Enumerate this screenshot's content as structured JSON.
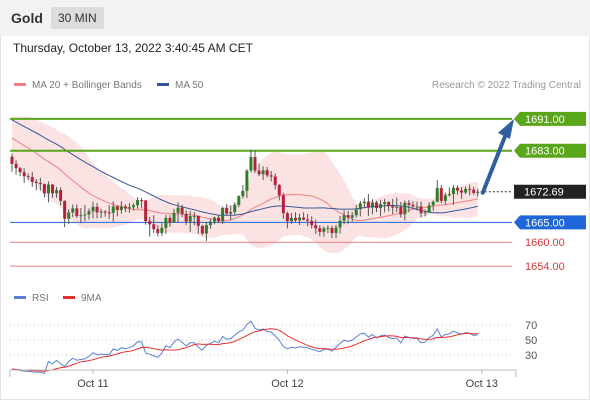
{
  "header": {
    "symbol": "Gold",
    "timeframe": "30 MIN"
  },
  "timestamp": "Thursday, October 13, 2022 3:40:45 AM CET",
  "legend": {
    "ma_bb": {
      "label": "MA 20 + Bollinger Bands",
      "color": "#f08080"
    },
    "ma50": {
      "label": "MA 50",
      "color": "#34589b"
    },
    "rsi": {
      "label": "RSI",
      "color": "#5b7fd6"
    },
    "rsi_ma": {
      "label": "9MA",
      "color": "#e53030"
    }
  },
  "credit": "Research © 2022 Trading Central",
  "chart_data": {
    "type": "candlestick",
    "x_ticks": [
      {
        "label": "Oct 11",
        "idx": 20
      },
      {
        "label": "Oct 12",
        "idx": 68
      },
      {
        "label": "Oct 13",
        "idx": 116
      }
    ],
    "ylim": [
      1648,
      1697
    ],
    "candles": [
      [
        1681.5,
        1682.3,
        1677.7,
        1679.7
      ],
      [
        1679.7,
        1680.6,
        1677.0,
        1678.6
      ],
      [
        1678.6,
        1678.9,
        1676.6,
        1677.6
      ],
      [
        1677.6,
        1678.6,
        1674.9,
        1676.6
      ],
      [
        1676.6,
        1677.3,
        1675.6,
        1676.4
      ],
      [
        1676.4,
        1677.7,
        1673.9,
        1675.2
      ],
      [
        1675.2,
        1675.9,
        1673.1,
        1674.9
      ],
      [
        1674.9,
        1676.2,
        1673.0,
        1674.6
      ],
      [
        1674.6,
        1674.8,
        1671.2,
        1672.3
      ],
      [
        1672.3,
        1675.3,
        1670.0,
        1674.5
      ],
      [
        1674.5,
        1674.6,
        1671.2,
        1672.3
      ],
      [
        1672.3,
        1673.9,
        1671.1,
        1673.1
      ],
      [
        1673.1,
        1673.8,
        1669.3,
        1670.4
      ],
      [
        1670.4,
        1670.5,
        1663.8,
        1665.9
      ],
      [
        1665.9,
        1668.3,
        1664.6,
        1667.5
      ],
      [
        1667.5,
        1669.5,
        1666.3,
        1668.5
      ],
      [
        1668.5,
        1669.5,
        1666.1,
        1666.6
      ],
      [
        1666.6,
        1668.6,
        1664.8,
        1666.8
      ],
      [
        1666.8,
        1669.4,
        1665.3,
        1667.0
      ],
      [
        1667.0,
        1668.5,
        1665.7,
        1667.8
      ],
      [
        1667.8,
        1670.2,
        1666.0,
        1668.9
      ],
      [
        1668.9,
        1669.9,
        1666.0,
        1667.5
      ],
      [
        1667.5,
        1668.4,
        1666.1,
        1667.7
      ],
      [
        1667.7,
        1668.1,
        1666.4,
        1667.5
      ],
      [
        1667.5,
        1669.3,
        1665.9,
        1667.4
      ],
      [
        1667.4,
        1670.3,
        1665.2,
        1669.0
      ],
      [
        1669.0,
        1669.3,
        1666.5,
        1668.1
      ],
      [
        1668.1,
        1670.3,
        1667.2,
        1669.0
      ],
      [
        1669.0,
        1669.5,
        1667.6,
        1668.5
      ],
      [
        1668.5,
        1669.8,
        1667.4,
        1668.8
      ],
      [
        1668.8,
        1669.7,
        1668.0,
        1669.3
      ],
      [
        1669.3,
        1671.3,
        1668.4,
        1670.6
      ],
      [
        1670.6,
        1671.1,
        1668.5,
        1670.5
      ],
      [
        1670.5,
        1670.6,
        1664.4,
        1665.3
      ],
      [
        1665.3,
        1666.4,
        1661.4,
        1664.5
      ],
      [
        1664.5,
        1666.8,
        1662.3,
        1663.3
      ],
      [
        1663.3,
        1664.3,
        1661.5,
        1662.3
      ],
      [
        1662.3,
        1664.8,
        1661.6,
        1663.6
      ],
      [
        1663.6,
        1666.9,
        1662.1,
        1666.1
      ],
      [
        1666.1,
        1666.8,
        1663.9,
        1665.0
      ],
      [
        1665.0,
        1668.4,
        1664.9,
        1667.4
      ],
      [
        1667.4,
        1670.0,
        1664.8,
        1668.7
      ],
      [
        1668.7,
        1669.4,
        1666.3,
        1667.1
      ],
      [
        1667.1,
        1668.0,
        1664.3,
        1665.2
      ],
      [
        1665.2,
        1667.9,
        1662.6,
        1666.6
      ],
      [
        1666.6,
        1667.6,
        1664.3,
        1666.6
      ],
      [
        1666.6,
        1666.6,
        1662.2,
        1664.1
      ],
      [
        1664.1,
        1664.4,
        1661.7,
        1662.2
      ],
      [
        1662.2,
        1665.1,
        1660.3,
        1664.3
      ],
      [
        1664.3,
        1665.9,
        1663.4,
        1665.2
      ],
      [
        1665.2,
        1666.4,
        1664.5,
        1666.2
      ],
      [
        1666.2,
        1666.8,
        1664.8,
        1665.3
      ],
      [
        1665.3,
        1668.9,
        1664.6,
        1668.6
      ],
      [
        1668.6,
        1669.6,
        1666.8,
        1667.2
      ],
      [
        1667.2,
        1669.2,
        1665.5,
        1667.6
      ],
      [
        1667.6,
        1670.0,
        1666.8,
        1669.4
      ],
      [
        1669.4,
        1671.8,
        1668.8,
        1671.6
      ],
      [
        1671.6,
        1674.4,
        1671.0,
        1672.9
      ],
      [
        1672.9,
        1678.3,
        1671.1,
        1678.0
      ],
      [
        1678.0,
        1683.3,
        1677.5,
        1681.4
      ],
      [
        1681.4,
        1683.0,
        1677.4,
        1678.0
      ],
      [
        1678.0,
        1679.8,
        1676.6,
        1677.1
      ],
      [
        1677.1,
        1679.1,
        1675.6,
        1678.1
      ],
      [
        1678.1,
        1678.9,
        1676.3,
        1676.8
      ],
      [
        1676.8,
        1677.9,
        1675.3,
        1676.5
      ],
      [
        1676.5,
        1677.3,
        1673.3,
        1674.4
      ],
      [
        1674.4,
        1674.6,
        1670.5,
        1671.8
      ],
      [
        1671.8,
        1672.5,
        1665.8,
        1667.3
      ],
      [
        1667.3,
        1667.7,
        1663.5,
        1665.3
      ],
      [
        1665.3,
        1667.4,
        1664.6,
        1666.1
      ],
      [
        1666.1,
        1667.5,
        1665.0,
        1665.5
      ],
      [
        1665.5,
        1667.2,
        1664.3,
        1666.2
      ],
      [
        1666.2,
        1667.5,
        1665.5,
        1665.7
      ],
      [
        1665.7,
        1667.1,
        1664.0,
        1665.4
      ],
      [
        1665.4,
        1666.5,
        1663.5,
        1664.3
      ],
      [
        1664.3,
        1665.7,
        1662.1,
        1663.5
      ],
      [
        1663.5,
        1664.3,
        1661.5,
        1662.6
      ],
      [
        1662.6,
        1664.0,
        1661.4,
        1663.5
      ],
      [
        1663.5,
        1664.3,
        1662.3,
        1663.6
      ],
      [
        1663.6,
        1664.2,
        1661.0,
        1662.3
      ],
      [
        1662.3,
        1664.4,
        1661.0,
        1663.7
      ],
      [
        1663.7,
        1666.6,
        1662.2,
        1665.4
      ],
      [
        1665.4,
        1668.0,
        1664.5,
        1666.8
      ],
      [
        1666.8,
        1667.9,
        1664.6,
        1666.2
      ],
      [
        1666.2,
        1667.6,
        1665.2,
        1666.8
      ],
      [
        1666.8,
        1669.4,
        1666.2,
        1668.3
      ],
      [
        1668.3,
        1670.4,
        1666.5,
        1669.8
      ],
      [
        1669.8,
        1671.1,
        1668.5,
        1670.2
      ],
      [
        1670.2,
        1672.1,
        1666.6,
        1668.7
      ],
      [
        1668.7,
        1670.8,
        1667.0,
        1670.0
      ],
      [
        1670.0,
        1670.4,
        1667.6,
        1668.6
      ],
      [
        1668.6,
        1670.7,
        1666.5,
        1669.6
      ],
      [
        1669.6,
        1670.9,
        1667.5,
        1670.1
      ],
      [
        1670.1,
        1670.3,
        1667.8,
        1669.1
      ],
      [
        1669.1,
        1670.9,
        1667.1,
        1668.7
      ],
      [
        1668.7,
        1671.2,
        1667.6,
        1668.9
      ],
      [
        1668.9,
        1670.1,
        1666.2,
        1667.0
      ],
      [
        1667.0,
        1670.5,
        1665.5,
        1669.9
      ],
      [
        1669.9,
        1670.6,
        1667.5,
        1669.4
      ],
      [
        1669.4,
        1670.3,
        1668.3,
        1669.0
      ],
      [
        1669.0,
        1670.2,
        1667.9,
        1669.0
      ],
      [
        1669.0,
        1670.2,
        1666.2,
        1667.3
      ],
      [
        1667.3,
        1668.2,
        1666.5,
        1667.5
      ],
      [
        1667.5,
        1670.1,
        1667.3,
        1669.3
      ],
      [
        1669.3,
        1670.5,
        1667.9,
        1670.2
      ],
      [
        1670.2,
        1675.6,
        1670.0,
        1673.6
      ],
      [
        1673.6,
        1674.4,
        1669.8,
        1670.4
      ],
      [
        1670.4,
        1672.5,
        1669.5,
        1671.8
      ],
      [
        1671.8,
        1673.8,
        1671.5,
        1672.1
      ],
      [
        1672.1,
        1674.4,
        1669.4,
        1673.7
      ],
      [
        1673.7,
        1674.3,
        1672.0,
        1673.0
      ],
      [
        1673.0,
        1673.9,
        1670.9,
        1672.5
      ],
      [
        1672.5,
        1674.0,
        1672.1,
        1673.4
      ],
      [
        1673.4,
        1674.5,
        1671.8,
        1673.2
      ],
      [
        1673.2,
        1673.9,
        1671.9,
        1672.4
      ],
      [
        1672.4,
        1673.5,
        1671.4,
        1672.7
      ]
    ],
    "arrow_target": 1691.0,
    "last_price": 1672.69,
    "levels": [
      {
        "value": 1691.0,
        "label": "1691.00",
        "color": "#5aa61a",
        "style": "resistance"
      },
      {
        "value": 1683.0,
        "label": "1683.00",
        "color": "#5aa61a",
        "style": "resistance"
      },
      {
        "value": 1672.69,
        "label": "1672.69",
        "color": "#222222",
        "style": "current"
      },
      {
        "value": 1665.0,
        "label": "1665.00",
        "color": "#1f66d8",
        "style": "pivot"
      },
      {
        "value": 1660.0,
        "label": "1660.00",
        "color": "#d23a3a",
        "style": "support"
      },
      {
        "value": 1654.0,
        "label": "1654.00",
        "color": "#d23a3a",
        "style": "support"
      }
    ],
    "rsi_ticks": [
      70,
      50,
      30
    ],
    "rsi_ylim": [
      10,
      90
    ]
  }
}
